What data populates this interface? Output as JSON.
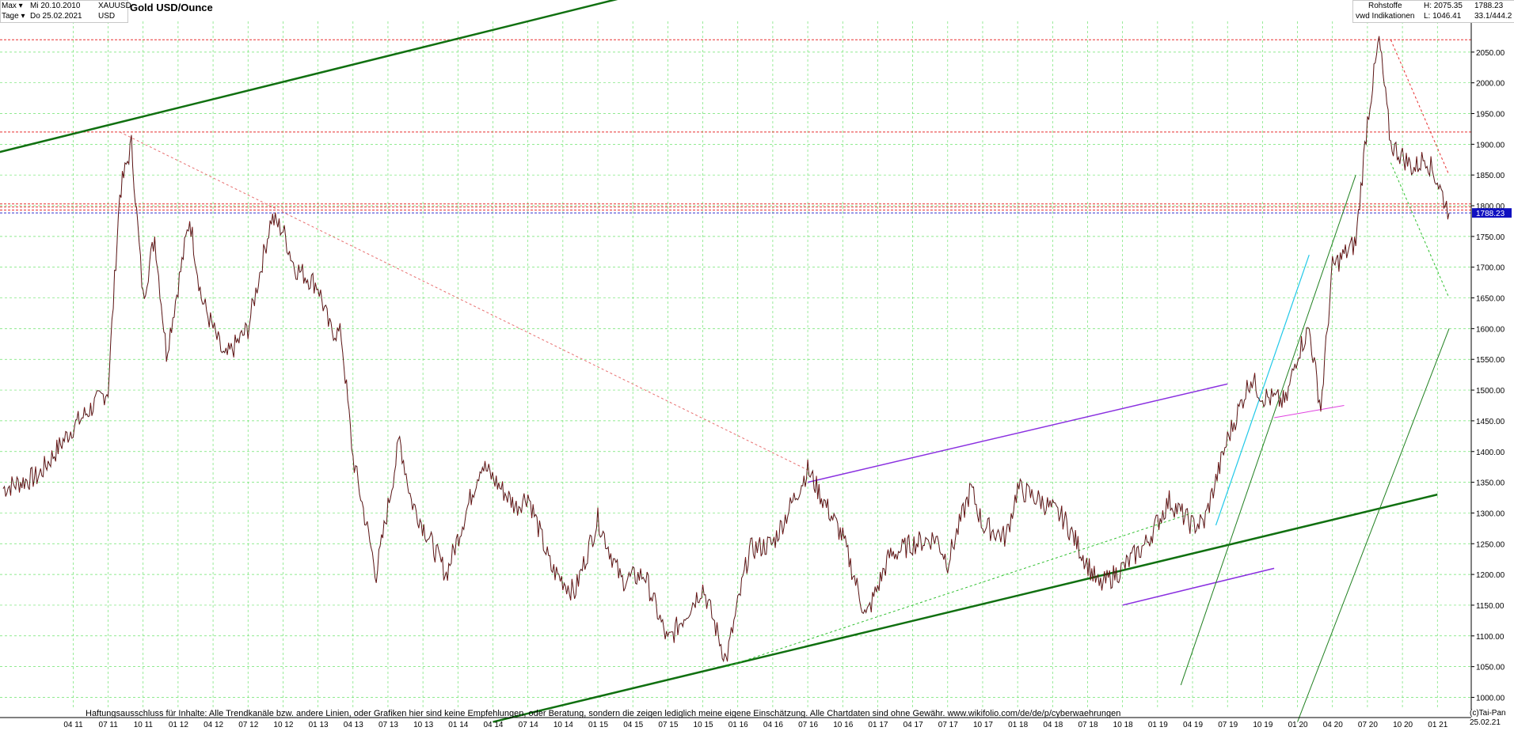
{
  "header": {
    "range_label": "Max",
    "interval_label": "Tage",
    "date_from": "Mi 20.10.2010",
    "date_to": "Do 25.02.2021",
    "symbol": "XAUUSD",
    "currency": "USD",
    "title": "Gold USD/Ounce",
    "category": "Rohstoffe",
    "source": "vwd Indikationen",
    "high_label": "H: 2075.35",
    "low_label": "L: 1046.41",
    "last_value": "1788.23",
    "change_value": "33.1/444.2"
  },
  "footer": {
    "disclaimer": "Haftungsausschluss für Inhalte: Alle Trendkanäle bzw. andere Linien, oder Grafiken hier sind keine Empfehlungen, oder Beratung, sondern die zeigen lediglich meine eigene Einschätzung. Alle Chartdaten sind ohne Gewähr.  www.wikifolio.com/de/de/p/cyberwaehrungen",
    "copyright": "(c)Tai-Pan",
    "end_date": "25.02.21"
  },
  "chart_data": {
    "type": "line",
    "title": "Gold USD/Ounce",
    "xlabel": "",
    "ylabel": "",
    "ylim": [
      980,
      2100
    ],
    "y_ticks": [
      1000,
      1050,
      1100,
      1150,
      1200,
      1250,
      1300,
      1350,
      1400,
      1450,
      1500,
      1550,
      1600,
      1650,
      1700,
      1750,
      1800,
      1850,
      1900,
      1950,
      2000,
      2050
    ],
    "x_ticks": [
      "04 11",
      "07 11",
      "10 11",
      "01 12",
      "04 12",
      "07 12",
      "10 12",
      "01 13",
      "04 13",
      "07 13",
      "10 13",
      "01 14",
      "04 14",
      "07 14",
      "10 14",
      "01 15",
      "04 15",
      "07 15",
      "10 15",
      "01 16",
      "04 16",
      "07 16",
      "10 16",
      "01 17",
      "04 17",
      "07 17",
      "10 17",
      "01 18",
      "04 18",
      "07 18",
      "10 18",
      "01 19",
      "04 19",
      "07 19",
      "10 19",
      "01 20",
      "04 20",
      "07 20",
      "10 20",
      "01 21"
    ],
    "grid": true,
    "series": [
      {
        "x": [
          "2010-10",
          "2011-01",
          "2011-04",
          "2011-07",
          "2011-08",
          "2011-09",
          "2011-10",
          "2011-11",
          "2011-12",
          "2012-02",
          "2012-03",
          "2012-05",
          "2012-07",
          "2012-09",
          "2012-10",
          "2012-11",
          "2013-01",
          "2013-02",
          "2013-03",
          "2013-04",
          "2013-06",
          "2013-08",
          "2013-09",
          "2013-12",
          "2014-03",
          "2014-06",
          "2014-07",
          "2014-09",
          "2014-11",
          "2015-01",
          "2015-03",
          "2015-05",
          "2015-07",
          "2015-10",
          "2015-12",
          "2016-02",
          "2016-04",
          "2016-07",
          "2016-10",
          "2016-12",
          "2017-02",
          "2017-04",
          "2017-06",
          "2017-07",
          "2017-09",
          "2017-10",
          "2017-12",
          "2018-01",
          "2018-03",
          "2018-05",
          "2018-08",
          "2018-10",
          "2018-12",
          "2019-02",
          "2019-04",
          "2019-05",
          "2019-07",
          "2019-09",
          "2019-10",
          "2019-12",
          "2020-01",
          "2020-02",
          "2020-03",
          "2020-04",
          "2020-06",
          "2020-07",
          "2020-08",
          "2020-09",
          "2020-10",
          "2020-11",
          "2020-12",
          "2021-01",
          "2021-02"
        ],
        "values": [
          1340,
          1360,
          1440,
          1500,
          1820,
          1900,
          1650,
          1750,
          1560,
          1780,
          1650,
          1550,
          1600,
          1780,
          1760,
          1700,
          1670,
          1600,
          1590,
          1390,
          1200,
          1420,
          1320,
          1200,
          1380,
          1310,
          1330,
          1210,
          1170,
          1290,
          1190,
          1200,
          1090,
          1180,
          1060,
          1240,
          1250,
          1370,
          1260,
          1130,
          1230,
          1250,
          1260,
          1220,
          1340,
          1280,
          1260,
          1340,
          1320,
          1290,
          1180,
          1210,
          1250,
          1320,
          1280,
          1285,
          1420,
          1520,
          1490,
          1480,
          1560,
          1600,
          1470,
          1700,
          1740,
          1940,
          2070,
          1900,
          1880,
          1860,
          1880,
          1840,
          1788
        ]
      }
    ],
    "last_price": 1788.23,
    "high": 2075.35,
    "low": 1046.41
  }
}
